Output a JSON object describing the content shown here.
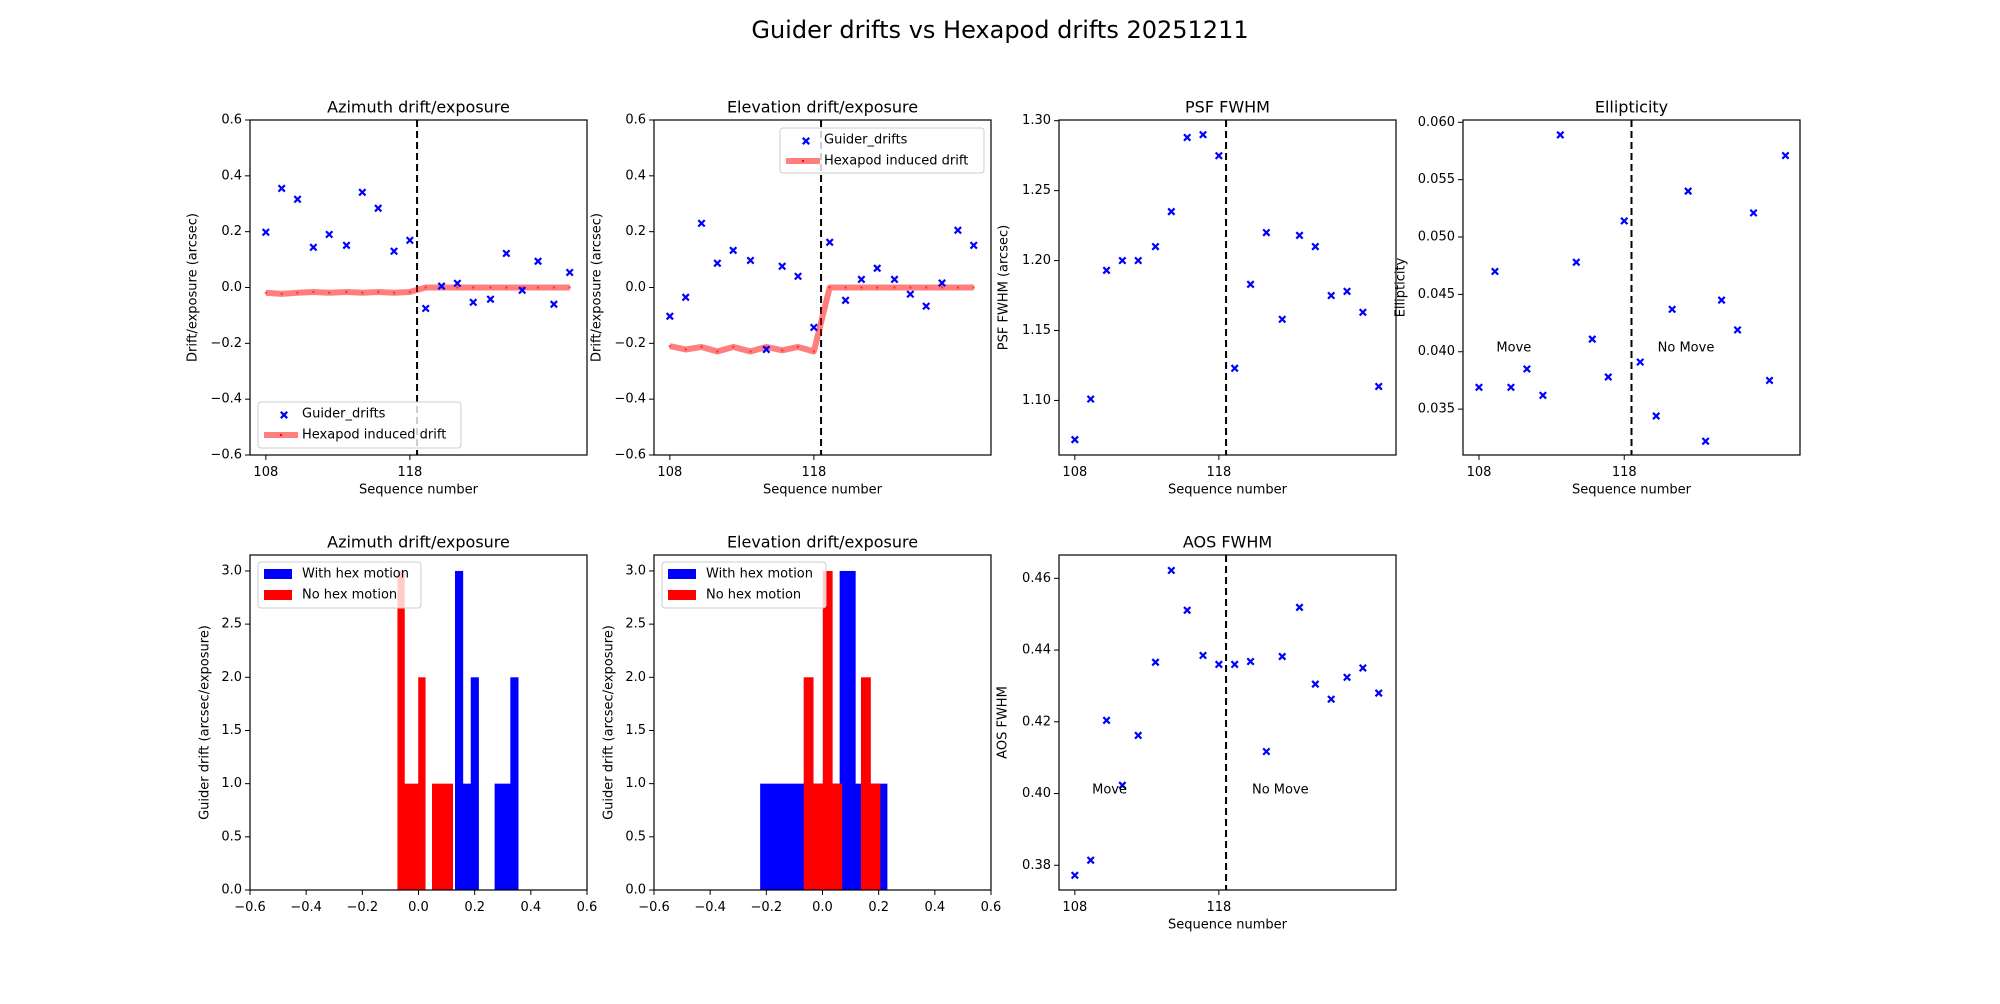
{
  "suptitle": "Guider drifts vs Hexapod drifts 20251211",
  "chart_data": [
    {
      "type": "scatter",
      "title": "Azimuth drift/exposure",
      "xlabel": "Sequence number",
      "ylabel": "Drift/exposure (arcsec)",
      "xlim": [
        106.9,
        130.3
      ],
      "ylim": [
        -0.6,
        0.6
      ],
      "xticks": [
        108,
        118
      ],
      "xtick_labels": [
        "108",
        "118"
      ],
      "yticks": [
        -0.6,
        -0.4,
        -0.2,
        0.0,
        0.2,
        0.4,
        0.6
      ],
      "ytick_labels": [
        "−0.6",
        "−0.4",
        "−0.2",
        "0.0",
        "0.2",
        "0.4",
        "0.6"
      ],
      "vline": 118.5,
      "legend": "lower left",
      "x": [
        108,
        109.1,
        110.2,
        111.3,
        112.4,
        113.6,
        114.7,
        115.8,
        116.9,
        118,
        119.1,
        120.2,
        121.3,
        122.4,
        123.6,
        124.7,
        125.8,
        126.9,
        128,
        129.1
      ],
      "series": [
        {
          "name": "Guider_drifts",
          "kind": "scatter",
          "marker": "x",
          "color": "#0000ff",
          "values": [
            0.198,
            0.355,
            0.316,
            0.144,
            0.19,
            0.151,
            0.341,
            0.284,
            0.13,
            0.169,
            -0.075,
            0.005,
            0.015,
            -0.053,
            -0.042,
            0.122,
            -0.01,
            0.094,
            -0.06,
            0.054
          ]
        },
        {
          "name": "Hexapod induced drift",
          "kind": "line",
          "color": "#ff0000",
          "values": [
            -0.019,
            -0.023,
            -0.019,
            -0.016,
            -0.019,
            -0.016,
            -0.019,
            -0.016,
            -0.019,
            -0.016,
            0,
            0,
            0,
            0,
            0,
            0,
            0,
            0,
            0,
            0
          ]
        }
      ]
    },
    {
      "type": "scatter",
      "title": "Elevation drift/exposure",
      "xlabel": "Sequence number",
      "ylabel": "Drift/exposure (arcsec)",
      "xlim": [
        106.9,
        130.3
      ],
      "ylim": [
        -0.6,
        0.6
      ],
      "xticks": [
        108,
        118
      ],
      "xtick_labels": [
        "108",
        "118"
      ],
      "yticks": [
        -0.6,
        -0.4,
        -0.2,
        0.0,
        0.2,
        0.4,
        0.6
      ],
      "ytick_labels": [
        "−0.6",
        "−0.4",
        "−0.2",
        "0.0",
        "0.2",
        "0.4",
        "0.6"
      ],
      "vline": 118.5,
      "legend": "upper right",
      "x": [
        108,
        109.1,
        110.2,
        111.3,
        112.4,
        113.6,
        114.7,
        115.8,
        116.9,
        118,
        119.1,
        120.2,
        121.3,
        122.4,
        123.6,
        124.7,
        125.8,
        126.9,
        128,
        129.1
      ],
      "series": [
        {
          "name": "Guider_drifts",
          "kind": "scatter",
          "marker": "x",
          "color": "#0000ff",
          "values": [
            -0.103,
            -0.035,
            0.23,
            0.087,
            0.133,
            0.097,
            -0.222,
            0.076,
            0.04,
            -0.143,
            0.162,
            -0.046,
            0.029,
            0.069,
            0.029,
            -0.024,
            -0.067,
            0.016,
            0.205,
            0.151
          ]
        },
        {
          "name": "Hexapod induced drift",
          "kind": "line",
          "color": "#ff0000",
          "values": [
            -0.21,
            -0.222,
            -0.213,
            -0.229,
            -0.213,
            -0.229,
            -0.213,
            -0.225,
            -0.213,
            -0.229,
            0,
            0,
            0,
            0,
            0,
            0,
            0,
            0,
            0,
            0
          ]
        }
      ]
    },
    {
      "type": "scatter",
      "title": "PSF FWHM",
      "xlabel": "Sequence number",
      "ylabel": "PSF FWHM (arcsec)",
      "xlim": [
        106.9,
        130.3
      ],
      "ylim": [
        1.061,
        1.3005
      ],
      "xticks": [
        108,
        118
      ],
      "xtick_labels": [
        "108",
        "118"
      ],
      "yticks": [
        1.1,
        1.15,
        1.2,
        1.25,
        1.3
      ],
      "ytick_labels": [
        "1.10",
        "1.15",
        "1.20",
        "1.25",
        "1.30"
      ],
      "vline": 118.5,
      "x": [
        108,
        109.1,
        110.2,
        111.3,
        112.4,
        113.6,
        114.7,
        115.8,
        116.9,
        118,
        119.1,
        120.2,
        121.3,
        122.4,
        123.6,
        124.7,
        125.8,
        126.9,
        128,
        129.1
      ],
      "series": [
        {
          "kind": "scatter",
          "marker": "x",
          "color": "#0000ff",
          "values": [
            1.072,
            1.101,
            1.193,
            1.2,
            1.2,
            1.21,
            1.235,
            1.288,
            1.29,
            1.275,
            1.123,
            1.183,
            1.22,
            1.158,
            1.218,
            1.21,
            1.175,
            1.178,
            1.163,
            1.11
          ]
        }
      ]
    },
    {
      "type": "scatter",
      "title": "Ellipticity",
      "xlabel": "Sequence number",
      "ylabel": "Ellipticity",
      "xlim": [
        106.9,
        130.1
      ],
      "ylim": [
        0.031,
        0.0602
      ],
      "xticks": [
        108,
        118
      ],
      "xtick_labels": [
        "108",
        "118"
      ],
      "yticks": [
        0.035,
        0.04,
        0.045,
        0.05,
        0.055,
        0.06
      ],
      "ytick_labels": [
        "0.035",
        "0.040",
        "0.045",
        "0.050",
        "0.055",
        "0.060"
      ],
      "vline": 118.5,
      "annotations": [
        {
          "text": "Move",
          "x": 109.2,
          "y": 0.04
        },
        {
          "text": "No Move",
          "x": 120.3,
          "y": 0.04
        }
      ],
      "x": [
        108,
        109.1,
        110.2,
        111.3,
        112.4,
        113.6,
        114.7,
        115.8,
        116.9,
        118,
        119.1,
        120.2,
        121.3,
        122.4,
        123.6,
        124.7,
        125.8,
        126.9,
        128,
        129.1
      ],
      "series": [
        {
          "kind": "scatter",
          "marker": "x",
          "color": "#0000ff",
          "values": [
            0.0369,
            0.047,
            0.0369,
            0.0385,
            0.0362,
            0.0589,
            0.0478,
            0.0411,
            0.0378,
            0.0514,
            0.0391,
            0.0344,
            0.0437,
            0.054,
            0.0322,
            0.0445,
            0.0419,
            0.0521,
            0.0375,
            0.0571
          ]
        }
      ]
    },
    {
      "type": "bar",
      "title": "Azimuth drift/exposure",
      "xlabel": "",
      "ylabel": "Guider drift (arcsec/exposure)",
      "xlim": [
        -0.6,
        0.6
      ],
      "ylim": [
        0,
        3.15
      ],
      "xticks": [
        -0.6,
        -0.4,
        -0.2,
        0.0,
        0.2,
        0.4,
        0.6
      ],
      "xtick_labels": [
        "−0.6",
        "−0.4",
        "−0.2",
        "0.0",
        "0.2",
        "0.4",
        "0.6"
      ],
      "yticks": [
        0,
        0.5,
        1.0,
        1.5,
        2.0,
        2.5,
        3.0
      ],
      "ytick_labels": [
        "0.0",
        "0.5",
        "1.0",
        "1.5",
        "2.0",
        "2.5",
        "3.0"
      ],
      "legend": "upper left",
      "series": [
        {
          "name": "With hex motion",
          "color": "#0000ff",
          "bin_edges": [
            0.13,
            0.158,
            0.186,
            0.214,
            0.243,
            0.271,
            0.299,
            0.327,
            0.355
          ],
          "counts": [
            3,
            1,
            2,
            0,
            0,
            1,
            1,
            2
          ]
        },
        {
          "name": "No hex motion",
          "color": "#ff0000",
          "bin_edges": [
            -0.075,
            -0.05,
            -0.026,
            -0.001,
            0.024,
            0.048,
            0.073,
            0.097,
            0.122
          ],
          "counts": [
            3,
            1,
            1,
            2,
            0,
            1,
            1,
            1
          ]
        }
      ]
    },
    {
      "type": "bar",
      "title": "Elevation drift/exposure",
      "xlabel": "",
      "ylabel": "Guider drift (arcsec/exposure)",
      "xlim": [
        -0.6,
        0.6
      ],
      "ylim": [
        0,
        3.15
      ],
      "xticks": [
        -0.6,
        -0.4,
        -0.2,
        0.0,
        0.2,
        0.4,
        0.6
      ],
      "xtick_labels": [
        "−0.6",
        "−0.4",
        "−0.2",
        "0.0",
        "0.2",
        "0.4",
        "0.6"
      ],
      "yticks": [
        0,
        0.5,
        1.0,
        1.5,
        2.0,
        2.5,
        3.0
      ],
      "ytick_labels": [
        "0.0",
        "0.5",
        "1.0",
        "1.5",
        "2.0",
        "2.5",
        "3.0"
      ],
      "legend": "upper left",
      "series": [
        {
          "name": "With hex motion",
          "color": "#0000ff",
          "bin_edges": [
            -0.222,
            -0.165,
            -0.109,
            -0.052,
            0.004,
            0.061,
            0.117,
            0.174,
            0.23
          ],
          "counts": [
            1,
            1,
            1,
            1,
            1,
            3,
            1,
            1
          ]
        },
        {
          "name": "No hex motion",
          "color": "#ff0000",
          "bin_edges": [
            -0.067,
            -0.033,
            0.001,
            0.035,
            0.069,
            0.103,
            0.137,
            0.171,
            0.205
          ],
          "counts": [
            2,
            1,
            3,
            1,
            0,
            0,
            2,
            1
          ]
        }
      ]
    },
    {
      "type": "scatter",
      "title": "AOS FWHM",
      "xlabel": "Sequence number",
      "ylabel": "AOS FWHM",
      "xlim": [
        106.9,
        130.3
      ],
      "ylim": [
        0.3731,
        0.4665
      ],
      "xticks": [
        108,
        118
      ],
      "xtick_labels": [
        "108",
        "118"
      ],
      "yticks": [
        0.38,
        0.4,
        0.42,
        0.44,
        0.46
      ],
      "ytick_labels": [
        "0.38",
        "0.40",
        "0.42",
        "0.44",
        "0.46"
      ],
      "vline": 118.5,
      "annotations": [
        {
          "text": "Move",
          "x": 109.2,
          "y": 0.4
        },
        {
          "text": "No Move",
          "x": 120.3,
          "y": 0.4
        }
      ],
      "x": [
        108,
        109.1,
        110.2,
        111.3,
        112.4,
        113.6,
        114.7,
        115.8,
        116.9,
        118,
        119.1,
        120.2,
        121.3,
        122.4,
        123.6,
        124.7,
        125.8,
        126.9,
        128,
        129.1
      ],
      "series": [
        {
          "kind": "scatter",
          "marker": "x",
          "color": "#0000ff",
          "values": [
            0.3772,
            0.3814,
            0.4204,
            0.4023,
            0.4162,
            0.4366,
            0.4622,
            0.4511,
            0.4385,
            0.436,
            0.436,
            0.4368,
            0.4117,
            0.4382,
            0.4519,
            0.4305,
            0.4263,
            0.4324,
            0.435,
            0.428
          ]
        }
      ]
    }
  ]
}
